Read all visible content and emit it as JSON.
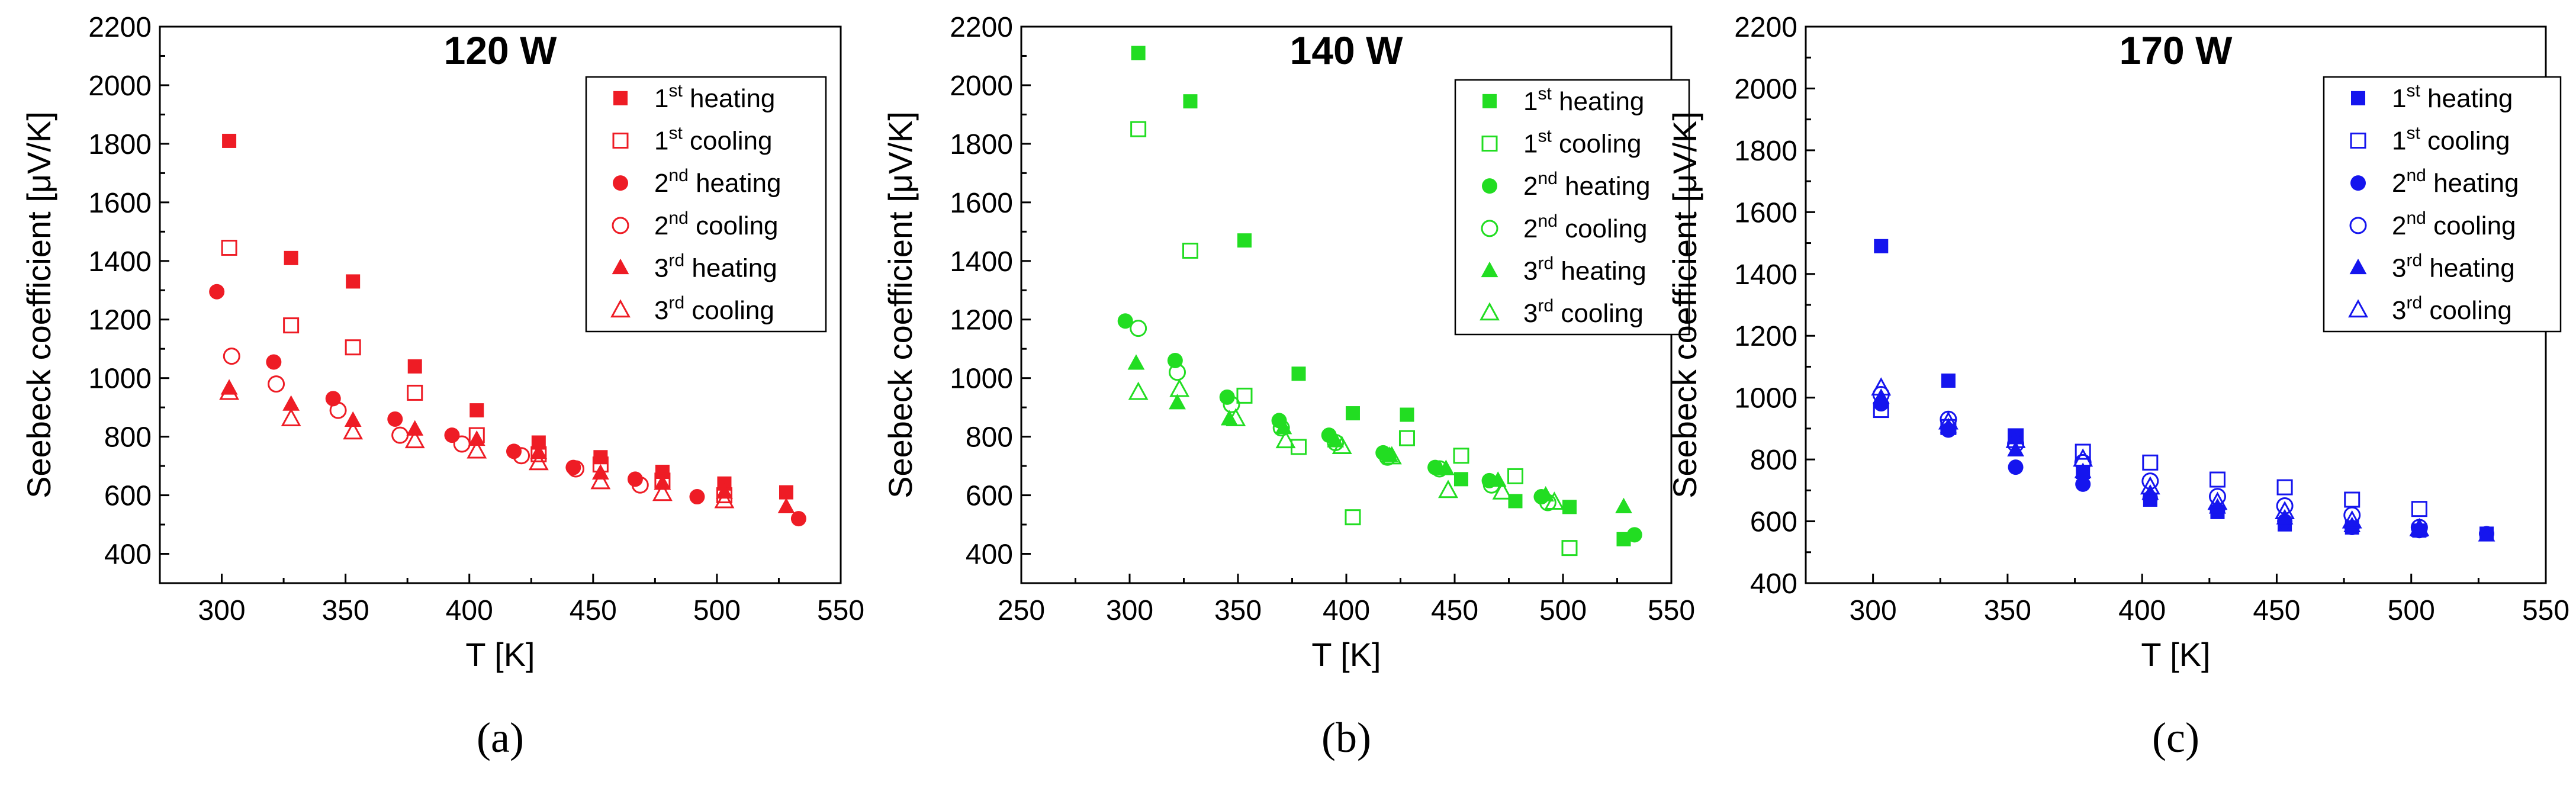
{
  "legend_labels": [
    {
      "ord": "1",
      "sup": "st",
      "text": "heating"
    },
    {
      "ord": "1",
      "sup": "st",
      "text": "cooling"
    },
    {
      "ord": "2",
      "sup": "nd",
      "text": "heating"
    },
    {
      "ord": "2",
      "sup": "nd",
      "text": "cooling"
    },
    {
      "ord": "3",
      "sup": "rd",
      "text": "heating"
    },
    {
      "ord": "3",
      "sup": "rd",
      "text": "cooling"
    }
  ],
  "chart_data": [
    {
      "type": "scatter",
      "panel_label": "(a)",
      "title": "120 W",
      "xlabel": "T [K]",
      "ylabel": "Seebeck coefficient [μV/K]",
      "xlim": [
        275,
        550
      ],
      "ylim": [
        300,
        2200
      ],
      "xticks": [
        300,
        350,
        400,
        450,
        500,
        550
      ],
      "yticks": [
        400,
        600,
        800,
        1000,
        1200,
        1400,
        1600,
        1800,
        2000,
        2200
      ],
      "color": "#ee1c25",
      "legend_position": "top-right",
      "series": [
        {
          "name": "1st heating",
          "marker": "square",
          "filled": true,
          "x": [
            303,
            328,
            353,
            378,
            403,
            428,
            453,
            478,
            503,
            528
          ],
          "y": [
            1810,
            1410,
            1330,
            1040,
            890,
            780,
            730,
            680,
            640,
            610
          ]
        },
        {
          "name": "1st cooling",
          "marker": "square",
          "filled": false,
          "x": [
            303,
            328,
            353,
            378,
            403,
            428,
            453,
            478,
            503
          ],
          "y": [
            1445,
            1180,
            1105,
            950,
            805,
            740,
            705,
            650,
            600
          ]
        },
        {
          "name": "2nd heating",
          "marker": "circle",
          "filled": true,
          "x": [
            298,
            321,
            345,
            370,
            393,
            418,
            442,
            467,
            492,
            533
          ],
          "y": [
            1295,
            1055,
            930,
            860,
            805,
            750,
            695,
            655,
            595,
            520
          ]
        },
        {
          "name": "2nd cooling",
          "marker": "circle",
          "filled": false,
          "x": [
            304,
            322,
            347,
            372,
            397,
            421,
            443,
            469
          ],
          "y": [
            1075,
            980,
            890,
            805,
            775,
            735,
            690,
            635
          ]
        },
        {
          "name": "3rd heating",
          "marker": "triangle",
          "filled": true,
          "x": [
            303,
            328,
            353,
            378,
            403,
            428,
            453,
            478,
            503,
            528
          ],
          "y": [
            965,
            910,
            855,
            825,
            790,
            745,
            675,
            640,
            610,
            560
          ]
        },
        {
          "name": "3rd cooling",
          "marker": "triangle",
          "filled": false,
          "x": [
            303,
            328,
            353,
            378,
            403,
            428,
            453,
            478,
            503
          ],
          "y": [
            950,
            860,
            815,
            785,
            750,
            710,
            645,
            605,
            580
          ]
        }
      ]
    },
    {
      "type": "scatter",
      "panel_label": "(b)",
      "title": "140 W",
      "xlabel": "T [K]",
      "ylabel": "Seebeck coefficient [μV/K]",
      "xlim": [
        250,
        550
      ],
      "ylim": [
        300,
        2200
      ],
      "xticks": [
        250,
        300,
        350,
        400,
        450,
        500,
        550
      ],
      "yticks": [
        400,
        600,
        800,
        1000,
        1200,
        1400,
        1600,
        1800,
        2000,
        2200
      ],
      "color": "#22dd22",
      "legend_position": "top-right",
      "series": [
        {
          "name": "1st heating",
          "marker": "square",
          "filled": true,
          "x": [
            304,
            328,
            353,
            378,
            403,
            428,
            453,
            478,
            503,
            528
          ],
          "y": [
            2110,
            1945,
            1470,
            1015,
            880,
            875,
            655,
            580,
            560,
            450
          ]
        },
        {
          "name": "1st cooling",
          "marker": "square",
          "filled": false,
          "x": [
            304,
            328,
            353,
            378,
            403,
            428,
            453,
            478,
            503
          ],
          "y": [
            1850,
            1435,
            940,
            765,
            525,
            795,
            735,
            665,
            420
          ]
        },
        {
          "name": "2nd heating",
          "marker": "circle",
          "filled": true,
          "x": [
            298,
            321,
            345,
            369,
            392,
            417,
            441,
            466,
            490,
            533
          ],
          "y": [
            1195,
            1060,
            935,
            855,
            805,
            745,
            695,
            650,
            595,
            465
          ]
        },
        {
          "name": "2nd cooling",
          "marker": "circle",
          "filled": false,
          "x": [
            304,
            322,
            347,
            370,
            395,
            419,
            443,
            467,
            493
          ],
          "y": [
            1170,
            1020,
            910,
            830,
            780,
            730,
            690,
            635,
            575
          ]
        },
        {
          "name": "3rd heating",
          "marker": "triangle",
          "filled": true,
          "x": [
            303,
            322,
            346,
            371,
            395,
            420,
            446,
            470,
            492,
            528
          ],
          "y": [
            1050,
            915,
            860,
            830,
            785,
            735,
            690,
            650,
            600,
            560
          ]
        },
        {
          "name": "3rd cooling",
          "marker": "triangle",
          "filled": false,
          "x": [
            304,
            323,
            349,
            372,
            398,
            421,
            447,
            472,
            496
          ],
          "y": [
            950,
            960,
            860,
            785,
            765,
            730,
            615,
            610,
            575
          ]
        }
      ]
    },
    {
      "type": "scatter",
      "panel_label": "(c)",
      "title": "170 W",
      "xlabel": "T [K]",
      "ylabel": "Seebeck coefficient [μV/K]",
      "xlim": [
        275,
        550
      ],
      "ylim": [
        400,
        2200
      ],
      "xticks": [
        300,
        350,
        400,
        450,
        500,
        550
      ],
      "yticks": [
        400,
        600,
        800,
        1000,
        1200,
        1400,
        1600,
        1800,
        2000,
        2200
      ],
      "color": "#1515ee",
      "legend_position": "top-right",
      "series": [
        {
          "name": "1st heating",
          "marker": "square",
          "filled": true,
          "x": [
            303,
            328,
            353,
            378,
            403,
            428,
            453,
            478,
            503,
            528
          ],
          "y": [
            1490,
            1055,
            875,
            760,
            670,
            630,
            590,
            580,
            570,
            560
          ]
        },
        {
          "name": "1st cooling",
          "marker": "square",
          "filled": false,
          "x": [
            303,
            328,
            353,
            378,
            403,
            428,
            453,
            478,
            503
          ],
          "y": [
            960,
            905,
            875,
            825,
            790,
            735,
            710,
            670,
            640
          ]
        },
        {
          "name": "2nd heating",
          "marker": "circle",
          "filled": true,
          "x": [
            303,
            328,
            353,
            378,
            403,
            428,
            453,
            478,
            503,
            528
          ],
          "y": [
            980,
            895,
            775,
            720,
            675,
            635,
            600,
            580,
            570,
            560
          ]
        },
        {
          "name": "2nd cooling",
          "marker": "circle",
          "filled": false,
          "x": [
            303,
            328,
            353,
            378,
            403,
            428,
            453,
            478,
            503
          ],
          "y": [
            1010,
            930,
            850,
            790,
            730,
            680,
            650,
            620,
            580
          ]
        },
        {
          "name": "3rd heating",
          "marker": "triangle",
          "filled": true,
          "x": [
            303,
            328,
            353,
            378,
            403,
            428,
            453,
            478,
            503,
            528
          ],
          "y": [
            1000,
            905,
            830,
            760,
            690,
            645,
            610,
            585,
            570,
            555
          ]
        },
        {
          "name": "3rd cooling",
          "marker": "triangle",
          "filled": false,
          "x": [
            303,
            328,
            353,
            378,
            403,
            428,
            453,
            478,
            503
          ],
          "y": [
            1030,
            920,
            860,
            800,
            710,
            660,
            630,
            600,
            575
          ]
        }
      ]
    }
  ]
}
